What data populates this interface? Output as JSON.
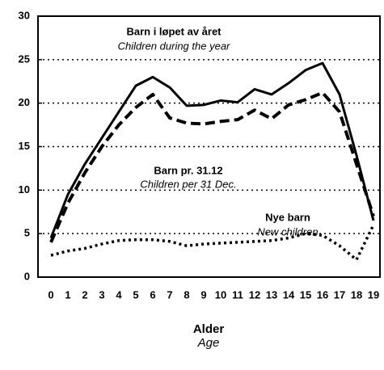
{
  "chart_data": {
    "type": "line",
    "categories": [
      "0",
      "1",
      "2",
      "3",
      "4",
      "5",
      "6",
      "7",
      "8",
      "9",
      "10",
      "11",
      "12",
      "13",
      "14",
      "15",
      "16",
      "17",
      "18",
      "19"
    ],
    "series": [
      {
        "name": "Barn i løpet av året",
        "name_en": "Children during the year",
        "color": "#000000",
        "dash": "solid",
        "values": [
          4.5,
          9.5,
          13,
          16,
          19,
          22,
          23,
          21.8,
          19.7,
          19.8,
          20.3,
          20.1,
          21.6,
          21,
          22.3,
          23.8,
          24.6,
          21,
          14,
          6.5
        ]
      },
      {
        "name": "Barn pr. 31.12",
        "name_en": "Children per 31 Dec.",
        "color": "#000000",
        "dash": "dashed",
        "values": [
          4,
          8.5,
          12,
          15,
          17.5,
          19.5,
          21,
          18.3,
          17.7,
          17.6,
          17.9,
          18.1,
          19.2,
          18.2,
          19.8,
          20.4,
          21.2,
          19,
          13,
          7
        ]
      },
      {
        "name": "Nye barn",
        "name_en": "New children",
        "color": "#000000",
        "dash": "dotted",
        "values": [
          2.5,
          3,
          3.3,
          3.8,
          4.2,
          4.3,
          4.3,
          4.1,
          3.6,
          3.8,
          3.9,
          4,
          4.1,
          4.2,
          4.5,
          5,
          4.8,
          3.6,
          2,
          6
        ]
      }
    ],
    "x_label": "Alder",
    "x_label_en": "Age",
    "ylim": [
      0,
      30
    ],
    "yticks": [
      0,
      5,
      10,
      15,
      20,
      25,
      30
    ],
    "grid": true
  }
}
